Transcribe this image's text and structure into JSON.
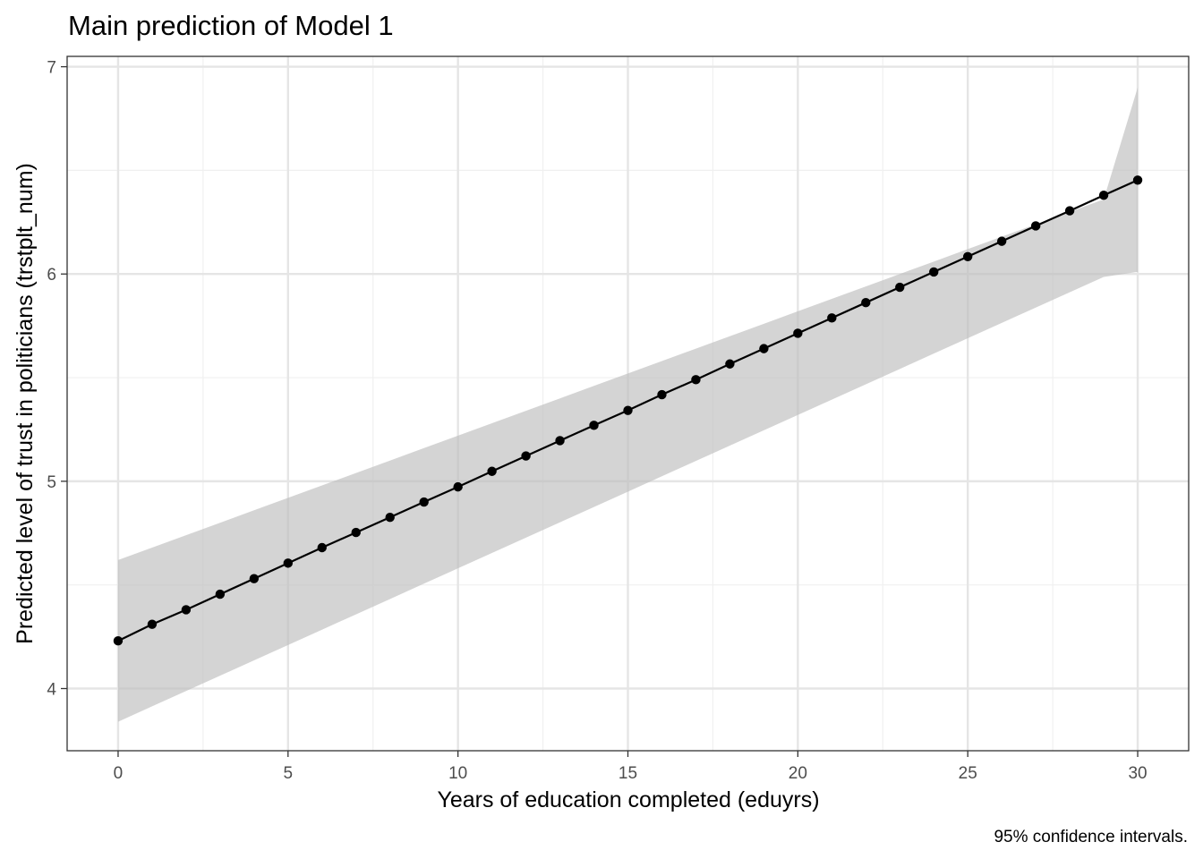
{
  "chart_data": {
    "type": "line",
    "title": "Main prediction of Model 1",
    "xlabel": "Years of education completed (eduyrs)",
    "ylabel": "Predicted level of trust in politicians (trstplt_num)",
    "caption": "95% confidence intervals.",
    "xlim": [
      -1.5,
      31.5
    ],
    "ylim": [
      3.7,
      7.05
    ],
    "x_ticks": [
      0,
      5,
      10,
      15,
      20,
      25,
      30
    ],
    "x_tick_labels": [
      "0",
      "5",
      "10",
      "15",
      "20",
      "25",
      "30"
    ],
    "y_ticks": [
      4,
      5,
      6,
      7
    ],
    "y_tick_labels": [
      "4",
      "5",
      "6",
      "7"
    ],
    "grid": true,
    "series": [
      {
        "x": [
          0,
          1,
          2,
          3,
          4,
          5,
          6,
          7,
          8,
          9,
          10,
          11,
          12,
          13,
          14,
          15,
          16,
          17,
          18,
          19,
          20,
          21,
          22,
          23,
          24,
          25,
          26,
          27,
          28,
          29,
          30
        ],
        "values": [
          4.23,
          4.31,
          4.38,
          4.455,
          4.53,
          4.605,
          4.68,
          4.753,
          4.826,
          4.9,
          4.973,
          5.048,
          5.122,
          5.196,
          5.27,
          5.342,
          5.418,
          5.49,
          5.566,
          5.64,
          5.714,
          5.788,
          5.862,
          5.936,
          6.01,
          6.084,
          6.158,
          6.232,
          6.305,
          6.38,
          6.453
        ],
        "ci_lower": [
          3.84,
          3.914,
          3.988,
          4.062,
          4.136,
          4.21,
          4.284,
          4.358,
          4.432,
          4.506,
          4.58,
          4.654,
          4.728,
          4.802,
          4.876,
          4.95,
          5.024,
          5.098,
          5.172,
          5.246,
          5.32,
          5.394,
          5.468,
          5.542,
          5.616,
          5.69,
          5.764,
          5.838,
          5.912,
          5.986,
          6.01
        ],
        "ci_upper": [
          4.62,
          4.68,
          4.74,
          4.8,
          4.86,
          4.92,
          4.98,
          5.04,
          5.1,
          5.16,
          5.22,
          5.28,
          5.34,
          5.4,
          5.46,
          5.52,
          5.58,
          5.64,
          5.7,
          5.76,
          5.82,
          5.88,
          5.94,
          6.0,
          6.06,
          6.12,
          6.18,
          6.24,
          6.3,
          6.36,
          6.9
        ]
      }
    ],
    "colors": {
      "line": "#000000",
      "point": "#000000",
      "ribbon": "#bdbdbd",
      "grid_major": "#e5e5e5",
      "grid_minor": "#f0f0f0",
      "panel_border": "#333333",
      "tick_text": "#4d4d4d"
    }
  }
}
